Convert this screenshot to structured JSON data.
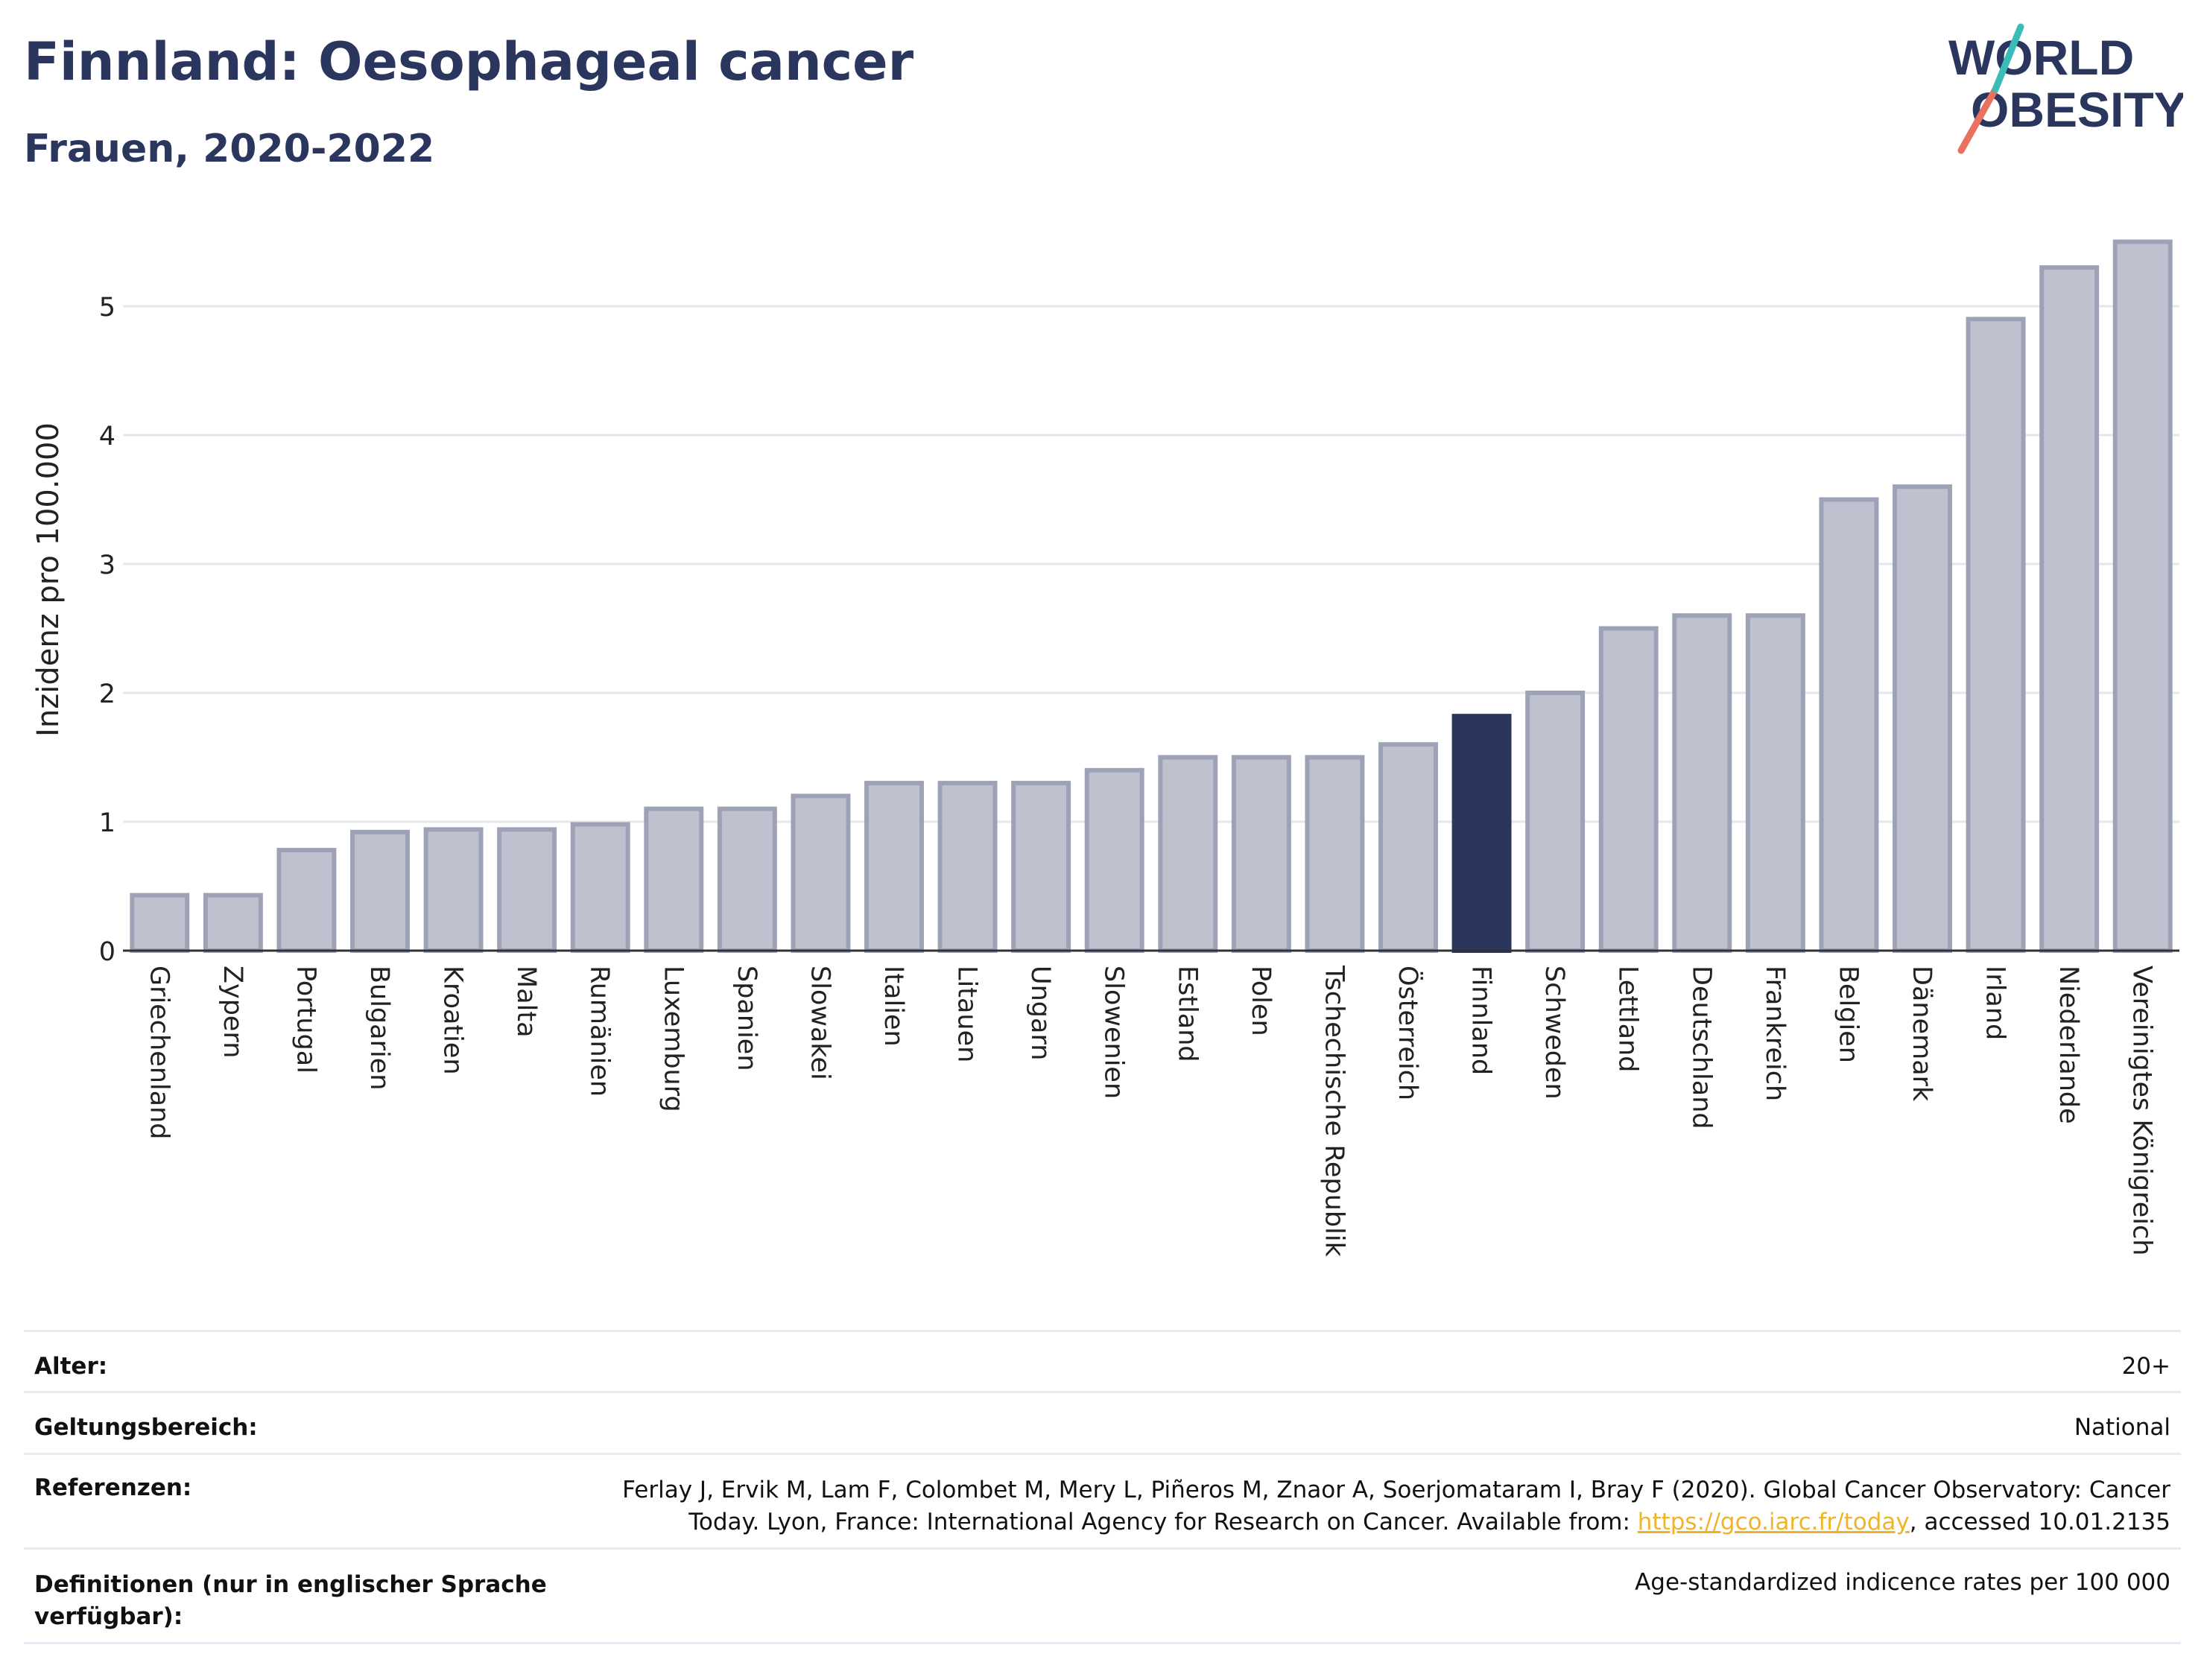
{
  "header": {
    "title": "Finnland: Oesophageal cancer",
    "subtitle": "Frauen, 2020-2022"
  },
  "logo": {
    "line1": "WORLD",
    "line2": "OBESITY"
  },
  "colors": {
    "bar": "#bfc2ce",
    "bar_border": "#9ea2b7",
    "highlight": "#2b365e",
    "grid": "#e6e7ec",
    "title": "#2b365e",
    "link": "#f0b428"
  },
  "chart_data": {
    "type": "bar",
    "ylabel": "Inzidenz pro 100.000",
    "ylim": [
      0,
      5.6
    ],
    "yticks": [
      0,
      1,
      2,
      3,
      4,
      5
    ],
    "grid": true,
    "highlight": "Finnland",
    "categories": [
      "Griechenland",
      "Zypern",
      "Portugal",
      "Bulgarien",
      "Kroatien",
      "Malta",
      "Rumänien",
      "Luxemburg",
      "Spanien",
      "Slowakei",
      "Italien",
      "Litauen",
      "Ungarn",
      "Slowenien",
      "Estland",
      "Polen",
      "Tschechische Republik",
      "Österreich",
      "Finnland",
      "Schweden",
      "Lettland",
      "Deutschland",
      "Frankreich",
      "Belgien",
      "Dänemark",
      "Irland",
      "Niederlande",
      "Vereinigtes Königreich"
    ],
    "values": [
      0.43,
      0.43,
      0.78,
      0.92,
      0.94,
      0.94,
      0.98,
      1.1,
      1.1,
      1.2,
      1.3,
      1.3,
      1.3,
      1.4,
      1.5,
      1.5,
      1.5,
      1.6,
      1.82,
      2.0,
      2.5,
      2.6,
      2.6,
      3.5,
      3.6,
      4.9,
      5.3,
      5.5
    ]
  },
  "info": {
    "age_label": "Alter:",
    "age_value": "20+",
    "scope_label": "Geltungsbereich:",
    "scope_value": "National",
    "ref_label": "Referenzen:",
    "ref_line1": "Ferlay J, Ervik M, Lam F, Colombet M, Mery L, Piñeros M, Znaor A, Soerjomataram I, Bray F (2020). Global Cancer Observatory: Cancer",
    "ref_line2_pre": "Today. Lyon, France: International Agency for Research on Cancer. Available from: ",
    "ref_link": "https://gco.iarc.fr/today",
    "ref_line2_post": ", accessed 10.01.2135",
    "def_label_1": "Definitionen (nur in englischer Sprache",
    "def_label_2": "verfügbar):",
    "def_value": "Age-standardized indicence rates per 100 000"
  }
}
